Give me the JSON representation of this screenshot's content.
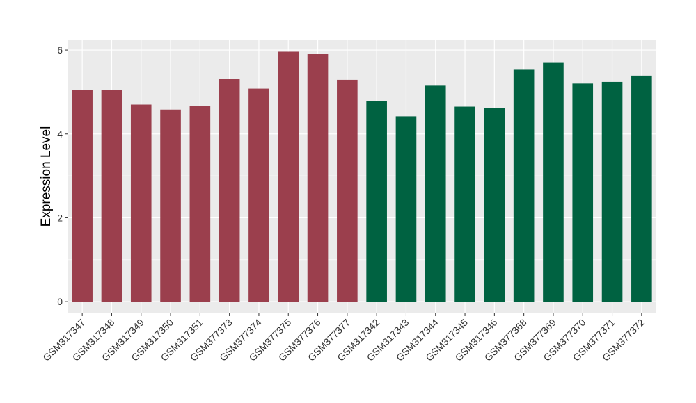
{
  "chart_data": {
    "type": "bar",
    "title": "",
    "xlabel": "",
    "ylabel": "Expression Level",
    "ylim": [
      -0.28,
      6.25
    ],
    "yticks": [
      0,
      2,
      4,
      6
    ],
    "ytick_labels": [
      "0",
      "2",
      "4",
      "6"
    ],
    "grid": true,
    "legend": "none",
    "panel_background": "#ebebeb",
    "gridline_color": "#ffffff",
    "categories": [
      "GSM317347",
      "GSM317348",
      "GSM317349",
      "GSM317350",
      "GSM317351",
      "GSM377373",
      "GSM377374",
      "GSM377375",
      "GSM377376",
      "GSM377377",
      "GSM317342",
      "GSM317343",
      "GSM317344",
      "GSM317345",
      "GSM317346",
      "GSM377368",
      "GSM377369",
      "GSM377370",
      "GSM377371",
      "GSM377372"
    ],
    "values": [
      5.05,
      5.05,
      4.7,
      4.58,
      4.67,
      5.31,
      5.08,
      5.96,
      5.91,
      5.29,
      4.78,
      4.42,
      5.15,
      4.65,
      4.61,
      5.53,
      5.71,
      5.2,
      5.24,
      5.39
    ],
    "bar_colors": [
      "#9b3f4d",
      "#9b3f4d",
      "#9b3f4d",
      "#9b3f4d",
      "#9b3f4d",
      "#9b3f4d",
      "#9b3f4d",
      "#9b3f4d",
      "#9b3f4d",
      "#9b3f4d",
      "#006241",
      "#006241",
      "#006241",
      "#006241",
      "#006241",
      "#006241",
      "#006241",
      "#006241",
      "#006241",
      "#006241"
    ]
  }
}
